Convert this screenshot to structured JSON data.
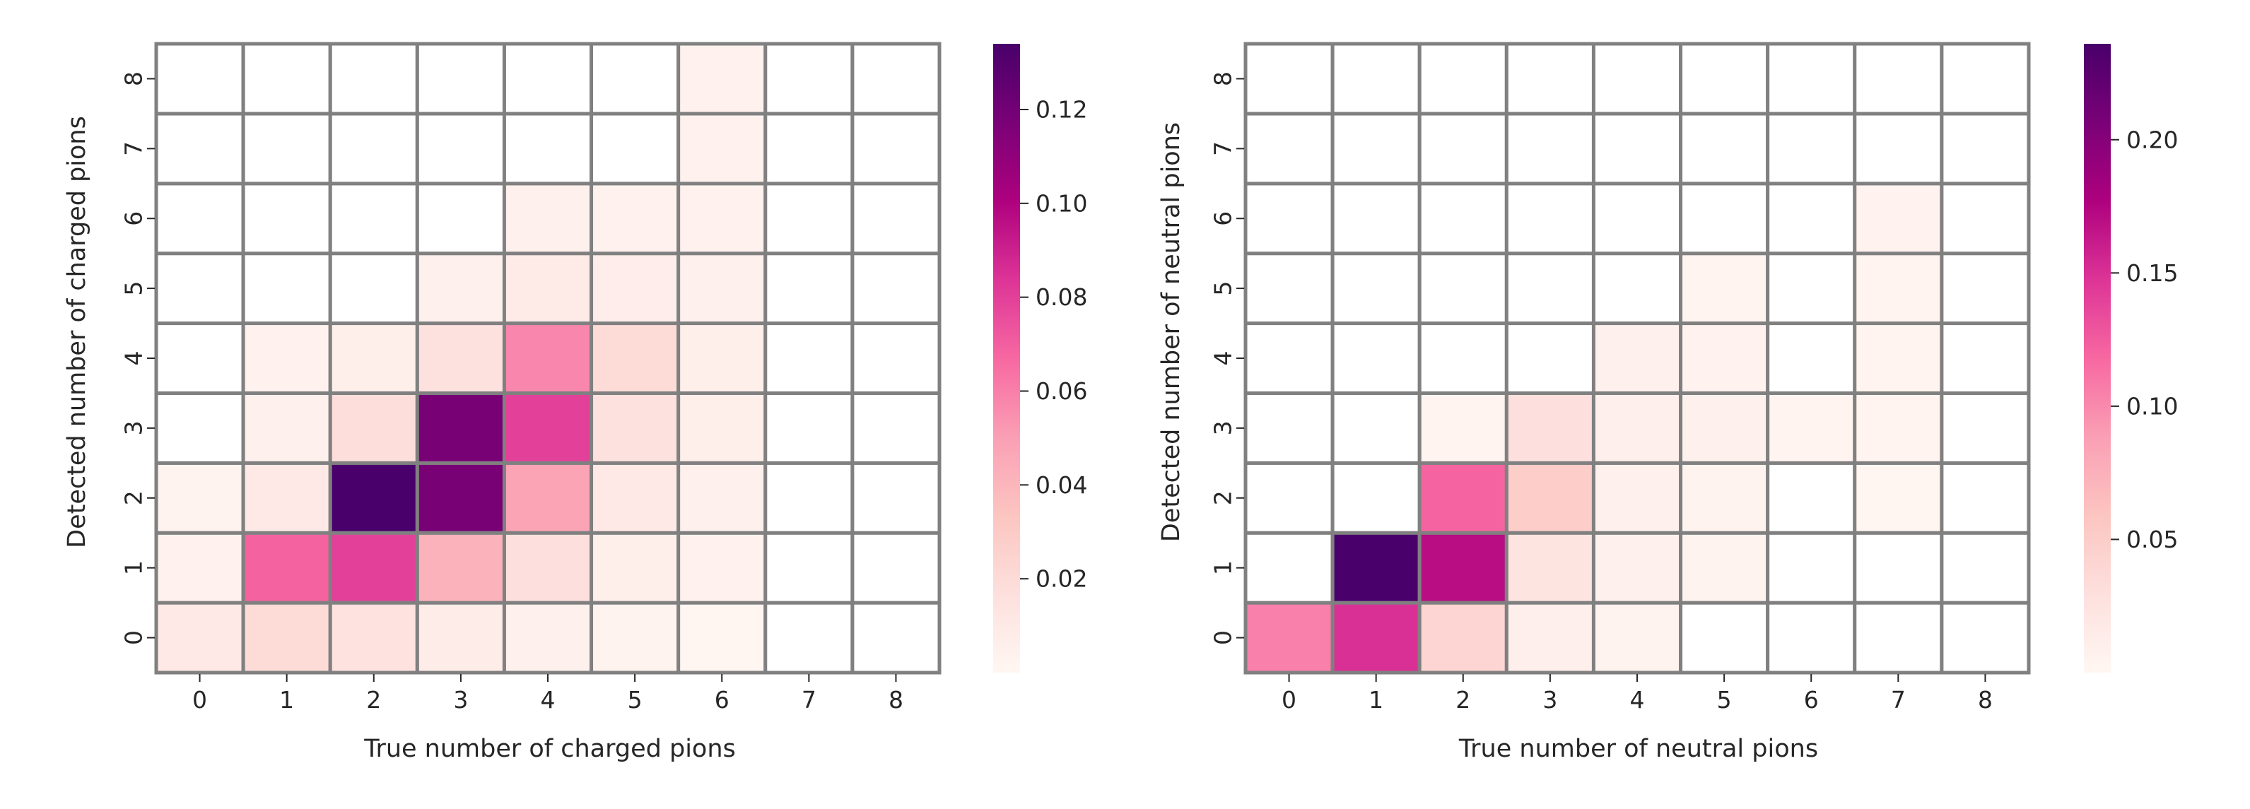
{
  "chart_data": [
    {
      "type": "heatmap",
      "title": "",
      "xlabel": "True number of charged pions",
      "ylabel": "Detected number of charged pions",
      "x": [
        "0",
        "1",
        "2",
        "3",
        "4",
        "5",
        "6",
        "7",
        "8"
      ],
      "y": [
        "0",
        "1",
        "2",
        "3",
        "4",
        "5",
        "6",
        "7",
        "8"
      ],
      "colormap": "RdPu",
      "vmin": 0,
      "vmax": 0.134,
      "colorbar_ticks": [
        "0.02",
        "0.04",
        "0.06",
        "0.08",
        "0.10",
        "0.12"
      ],
      "colorbar_tick_values": [
        0.02,
        0.04,
        0.06,
        0.08,
        0.1,
        0.12
      ],
      "grid_color": "#808080",
      "values": [
        [
          0.01,
          0.02,
          0.015,
          0.008,
          0.005,
          0.003,
          0.001,
          0,
          0
        ],
        [
          0.004,
          0.069,
          0.08,
          0.042,
          0.017,
          0.006,
          0.004,
          0,
          0
        ],
        [
          0.003,
          0.01,
          0.134,
          0.118,
          0.048,
          0.01,
          0.005,
          0,
          0
        ],
        [
          0,
          0.005,
          0.018,
          0.118,
          0.08,
          0.016,
          0.006,
          0,
          0
        ],
        [
          0,
          0.004,
          0.006,
          0.016,
          0.058,
          0.02,
          0.006,
          0,
          0
        ],
        [
          0,
          0,
          0,
          0.005,
          0.009,
          0.007,
          0.005,
          0,
          0
        ],
        [
          0,
          0,
          0,
          0,
          0.005,
          0.004,
          0.004,
          0,
          0
        ],
        [
          0,
          0,
          0,
          0,
          0,
          0,
          0.004,
          0,
          0
        ],
        [
          0,
          0,
          0,
          0,
          0,
          0,
          0.004,
          0,
          0
        ]
      ]
    },
    {
      "type": "heatmap",
      "title": "",
      "xlabel": "True number of neutral pions",
      "ylabel": "Detected number of neutral pions",
      "x": [
        "0",
        "1",
        "2",
        "3",
        "4",
        "5",
        "6",
        "7",
        "8"
      ],
      "y": [
        "0",
        "1",
        "2",
        "3",
        "4",
        "5",
        "6",
        "7",
        "8"
      ],
      "colormap": "RdPu",
      "vmin": 0,
      "vmax": 0.236,
      "colorbar_ticks": [
        "0.05",
        "0.10",
        "0.15",
        "0.20"
      ],
      "colorbar_tick_values": [
        0.05,
        0.1,
        0.15,
        0.2
      ],
      "grid_color": "#808080",
      "values": [
        [
          0.105,
          0.15,
          0.04,
          0.01,
          0.005,
          0,
          0,
          0,
          0
        ],
        [
          0,
          0.236,
          0.17,
          0.025,
          0.008,
          0.005,
          0,
          0,
          0
        ],
        [
          0,
          0,
          0.12,
          0.05,
          0.008,
          0.005,
          0,
          0.003,
          0
        ],
        [
          0,
          0,
          0.004,
          0.03,
          0.01,
          0.008,
          0.004,
          0.004,
          0
        ],
        [
          0,
          0,
          0,
          0,
          0.008,
          0.006,
          0,
          0.004,
          0
        ],
        [
          0,
          0,
          0,
          0,
          0,
          0.004,
          0,
          0.004,
          0
        ],
        [
          0,
          0,
          0,
          0,
          0,
          0,
          0,
          0.006,
          0
        ],
        [
          0,
          0,
          0,
          0,
          0,
          0,
          0,
          0,
          0
        ],
        [
          0,
          0,
          0,
          0,
          0,
          0,
          0,
          0,
          0
        ]
      ]
    }
  ]
}
